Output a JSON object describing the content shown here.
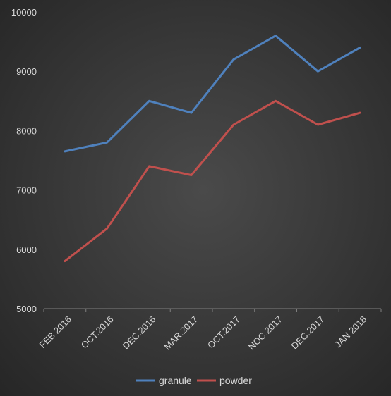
{
  "chart_data": {
    "type": "line",
    "title": "",
    "xlabel": "",
    "ylabel": "",
    "categories": [
      "FEB.2016",
      "OCT.2016",
      "DEC.2016",
      "MAR.2017",
      "OCT.2017",
      "NOC.2017",
      "DEC.2017",
      "JAN 2018"
    ],
    "ylim": [
      5000,
      10000
    ],
    "yticks": [
      5000,
      6000,
      7000,
      8000,
      9000,
      10000
    ],
    "grid": false,
    "legend_position": "bottom",
    "series": [
      {
        "name": "granule",
        "color": "#4f81bd",
        "values": [
          7650,
          7800,
          8500,
          8300,
          9200,
          9600,
          9000,
          9400
        ]
      },
      {
        "name": "powder",
        "color": "#c0504d",
        "values": [
          5800,
          6350,
          7400,
          7250,
          8100,
          8500,
          8100,
          8300
        ]
      }
    ]
  }
}
